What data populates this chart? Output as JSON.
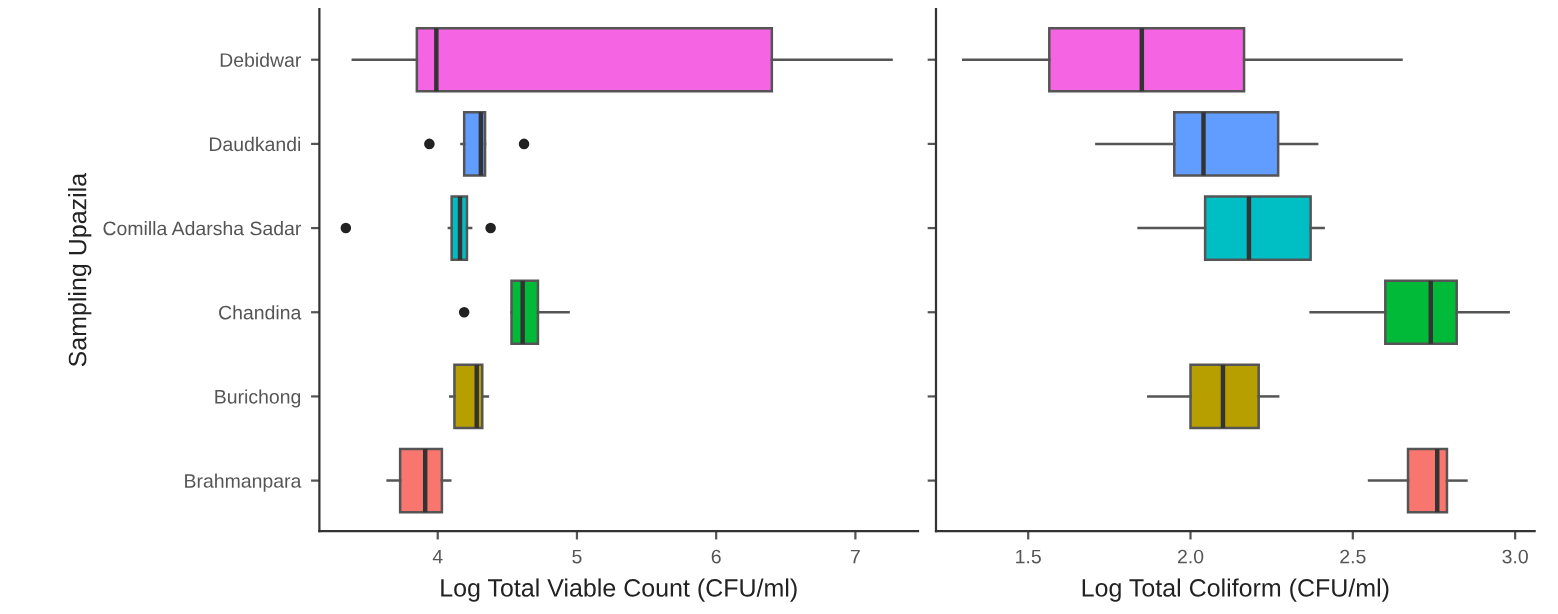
{
  "chart_data": [
    {
      "type": "box",
      "orientation": "horizontal",
      "xlabel": "Log Total Viable Count (CFU/ml)",
      "ylabel": "Sampling Upazila",
      "categories": [
        "Debidwar",
        "Daudkandi",
        "Comilla Adarsha Sadar",
        "Chandina",
        "Burichong",
        "Brahmanpara"
      ],
      "colors": [
        "#f564e3",
        "#619cff",
        "#00bfc4",
        "#00ba38",
        "#b79f00",
        "#f8766d"
      ],
      "boxes": [
        {
          "low": 3.39,
          "q1": 3.85,
          "median": 3.99,
          "q3": 6.4,
          "high": 7.26
        },
        {
          "low": 4.17,
          "q1": 4.19,
          "median": 4.31,
          "q3": 4.34,
          "high": 4.34,
          "outliers": [
            3.94,
            4.62
          ]
        },
        {
          "low": 4.08,
          "q1": 4.1,
          "median": 4.16,
          "q3": 4.21,
          "high": 4.24,
          "outliers": [
            3.34,
            4.38
          ]
        },
        {
          "low": 4.53,
          "q1": 4.53,
          "median": 4.61,
          "q3": 4.72,
          "high": 4.94,
          "outliers": [
            4.19
          ]
        },
        {
          "low": 4.09,
          "q1": 4.12,
          "median": 4.28,
          "q3": 4.32,
          "high": 4.36
        },
        {
          "low": 3.64,
          "q1": 3.73,
          "median": 3.91,
          "q3": 4.03,
          "high": 4.09
        }
      ],
      "xlim": [
        3.15,
        7.45
      ],
      "xticks": [
        4,
        5,
        6,
        7
      ],
      "grid": false,
      "legend": false
    },
    {
      "type": "box",
      "orientation": "horizontal",
      "xlabel": "Log Total Coliform (CFU/ml)",
      "colors": [
        "#f564e3",
        "#619cff",
        "#00bfc4",
        "#00ba38",
        "#b79f00",
        "#f8766d"
      ],
      "boxes": [
        {
          "low": 1.3,
          "q1": 1.565,
          "median": 1.85,
          "q3": 2.165,
          "high": 2.65
        },
        {
          "low": 1.71,
          "q1": 1.95,
          "median": 2.04,
          "q3": 2.27,
          "high": 2.39
        },
        {
          "low": 1.84,
          "q1": 2.045,
          "median": 2.18,
          "q3": 2.37,
          "high": 2.41
        },
        {
          "low": 2.37,
          "q1": 2.6,
          "median": 2.74,
          "q3": 2.82,
          "high": 2.98
        },
        {
          "low": 1.87,
          "q1": 2.0,
          "median": 2.1,
          "q3": 2.21,
          "high": 2.27
        },
        {
          "low": 2.55,
          "q1": 2.67,
          "median": 2.76,
          "q3": 2.79,
          "high": 2.85
        }
      ],
      "xlim": [
        1.216,
        3.06
      ],
      "xticks": [
        {
          "value": 1.5,
          "label": "1.5"
        },
        {
          "value": 2.0,
          "label": "2.0"
        },
        {
          "value": 2.5,
          "label": "2.5"
        },
        {
          "value": 3.0,
          "label": "3.0"
        }
      ],
      "tick_labels": "x",
      "grid": false,
      "legend": false
    }
  ]
}
